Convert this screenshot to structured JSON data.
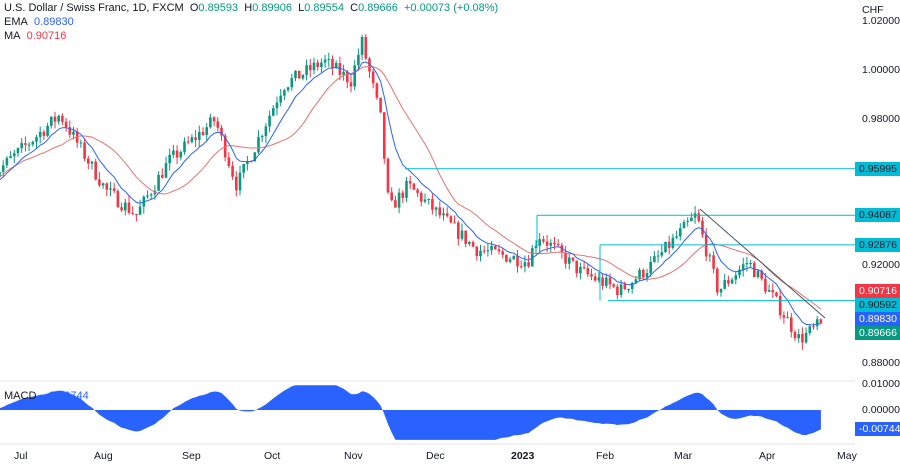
{
  "header": {
    "symbol": "U.S. Dollar / Swiss Franc, 1D, FXCM",
    "o_label": "O",
    "open": "0.89593",
    "h_label": "H",
    "high": "0.89906",
    "l_label": "L",
    "low": "0.89554",
    "c_label": "C",
    "close": "0.89666",
    "change": "+0.00073 (+0.08%)"
  },
  "ema": {
    "label": "EMA",
    "value": "0.89830",
    "color": "#2962ff"
  },
  "ma": {
    "label": "MA",
    "value": "0.90716",
    "color": "#f23645"
  },
  "currency": "CHF",
  "macd": {
    "label": "MACD",
    "value": "−0.00744",
    "tag": "-0.00744",
    "ticks": [
      "0.01000",
      "0.00000"
    ]
  },
  "chart_data": {
    "type": "candlestick",
    "price_ticks": [
      "1.02000",
      "1.00000",
      "0.98000",
      "0.92000",
      "0.88000"
    ],
    "price_range": [
      0.88,
      1.02
    ],
    "x_labels": [
      "Jul",
      "Aug",
      "Sep",
      "Oct",
      "Nov",
      "Dec",
      "2023",
      "Feb",
      "Mar",
      "Apr",
      "May"
    ],
    "waypoints": [
      [
        "2022-06-20",
        0.957
      ],
      [
        "2022-07-15",
        0.982
      ],
      [
        "2022-08-01",
        0.951
      ],
      [
        "2022-08-12",
        0.941
      ],
      [
        "2022-08-24",
        0.963
      ],
      [
        "2022-09-10",
        0.98
      ],
      [
        "2022-09-18",
        0.953
      ],
      [
        "2022-10-05",
        0.994
      ],
      [
        "2022-10-20",
        1.004
      ],
      [
        "2022-10-30",
        0.996
      ],
      [
        "2022-11-03",
        1.012
      ],
      [
        "2022-11-10",
        0.98
      ],
      [
        "2022-11-13",
        0.943
      ],
      [
        "2022-11-20",
        0.953
      ],
      [
        "2022-12-15",
        0.927
      ],
      [
        "2023-01-03",
        0.922
      ],
      [
        "2023-01-07",
        0.933
      ],
      [
        "2023-01-22",
        0.918
      ],
      [
        "2023-02-06",
        0.91
      ],
      [
        "2023-02-17",
        0.92
      ],
      [
        "2023-03-06",
        0.941
      ],
      [
        "2023-03-14",
        0.91
      ],
      [
        "2023-03-25",
        0.922
      ],
      [
        "2023-04-04",
        0.906
      ],
      [
        "2023-04-13",
        0.89
      ],
      [
        "2023-04-21",
        0.8967
      ]
    ],
    "levels": [
      {
        "value": 0.95995,
        "label": "0.95995"
      },
      {
        "value": 0.94087,
        "label": "0.94087"
      },
      {
        "value": 0.92876,
        "label": "0.92876"
      },
      {
        "value": 0.90592,
        "label": "0.90592"
      }
    ],
    "tags": {
      "ma": "0.90716",
      "ema": "0.89830",
      "last": "0.89666"
    },
    "colors": {
      "up": "#089981",
      "down": "#f23645",
      "ema": "#2962ff",
      "ma": "#e57373",
      "level": "#00bcd4",
      "macd": "#2962ff"
    }
  }
}
